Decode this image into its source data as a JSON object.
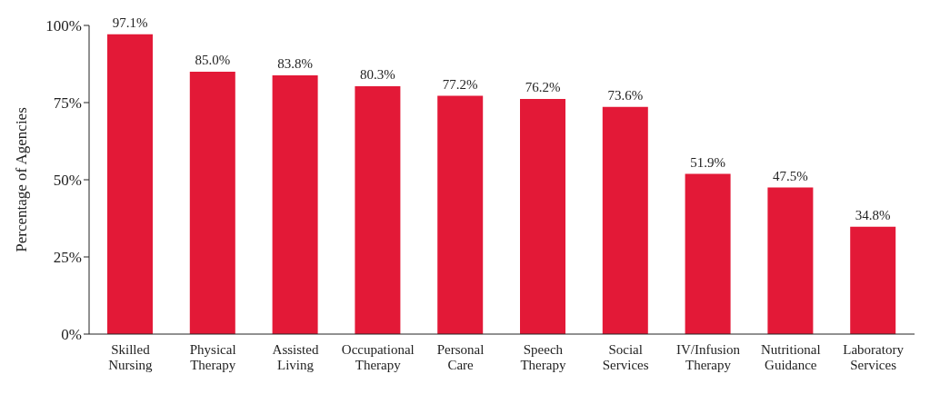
{
  "chart_data": {
    "type": "bar",
    "ylabel": "Percentage of Agencies",
    "categories": [
      "Skilled Nursing",
      "Physical Therapy",
      "Assisted Living",
      "Occupational Therapy",
      "Personal Care",
      "Speech Therapy",
      "Social Services",
      "IV/Infusion Therapy",
      "Nutritional Guidance",
      "Laboratory Services"
    ],
    "values": [
      97.1,
      85.0,
      83.8,
      80.3,
      77.2,
      76.2,
      73.6,
      51.9,
      47.5,
      34.8
    ],
    "value_labels": [
      "97.1%",
      "85.0%",
      "83.8%",
      "80.3%",
      "77.2%",
      "76.2%",
      "73.6%",
      "51.9%",
      "47.5%",
      "34.8%"
    ],
    "color": "#e31937",
    "ylim": [
      0,
      100
    ],
    "yticks": [
      {
        "value": 0,
        "label": "0%"
      },
      {
        "value": 25,
        "label": "25%"
      },
      {
        "value": 50,
        "label": "50%"
      },
      {
        "value": 75,
        "label": "75%"
      },
      {
        "value": 100,
        "label": "100%"
      }
    ],
    "grid": false
  }
}
